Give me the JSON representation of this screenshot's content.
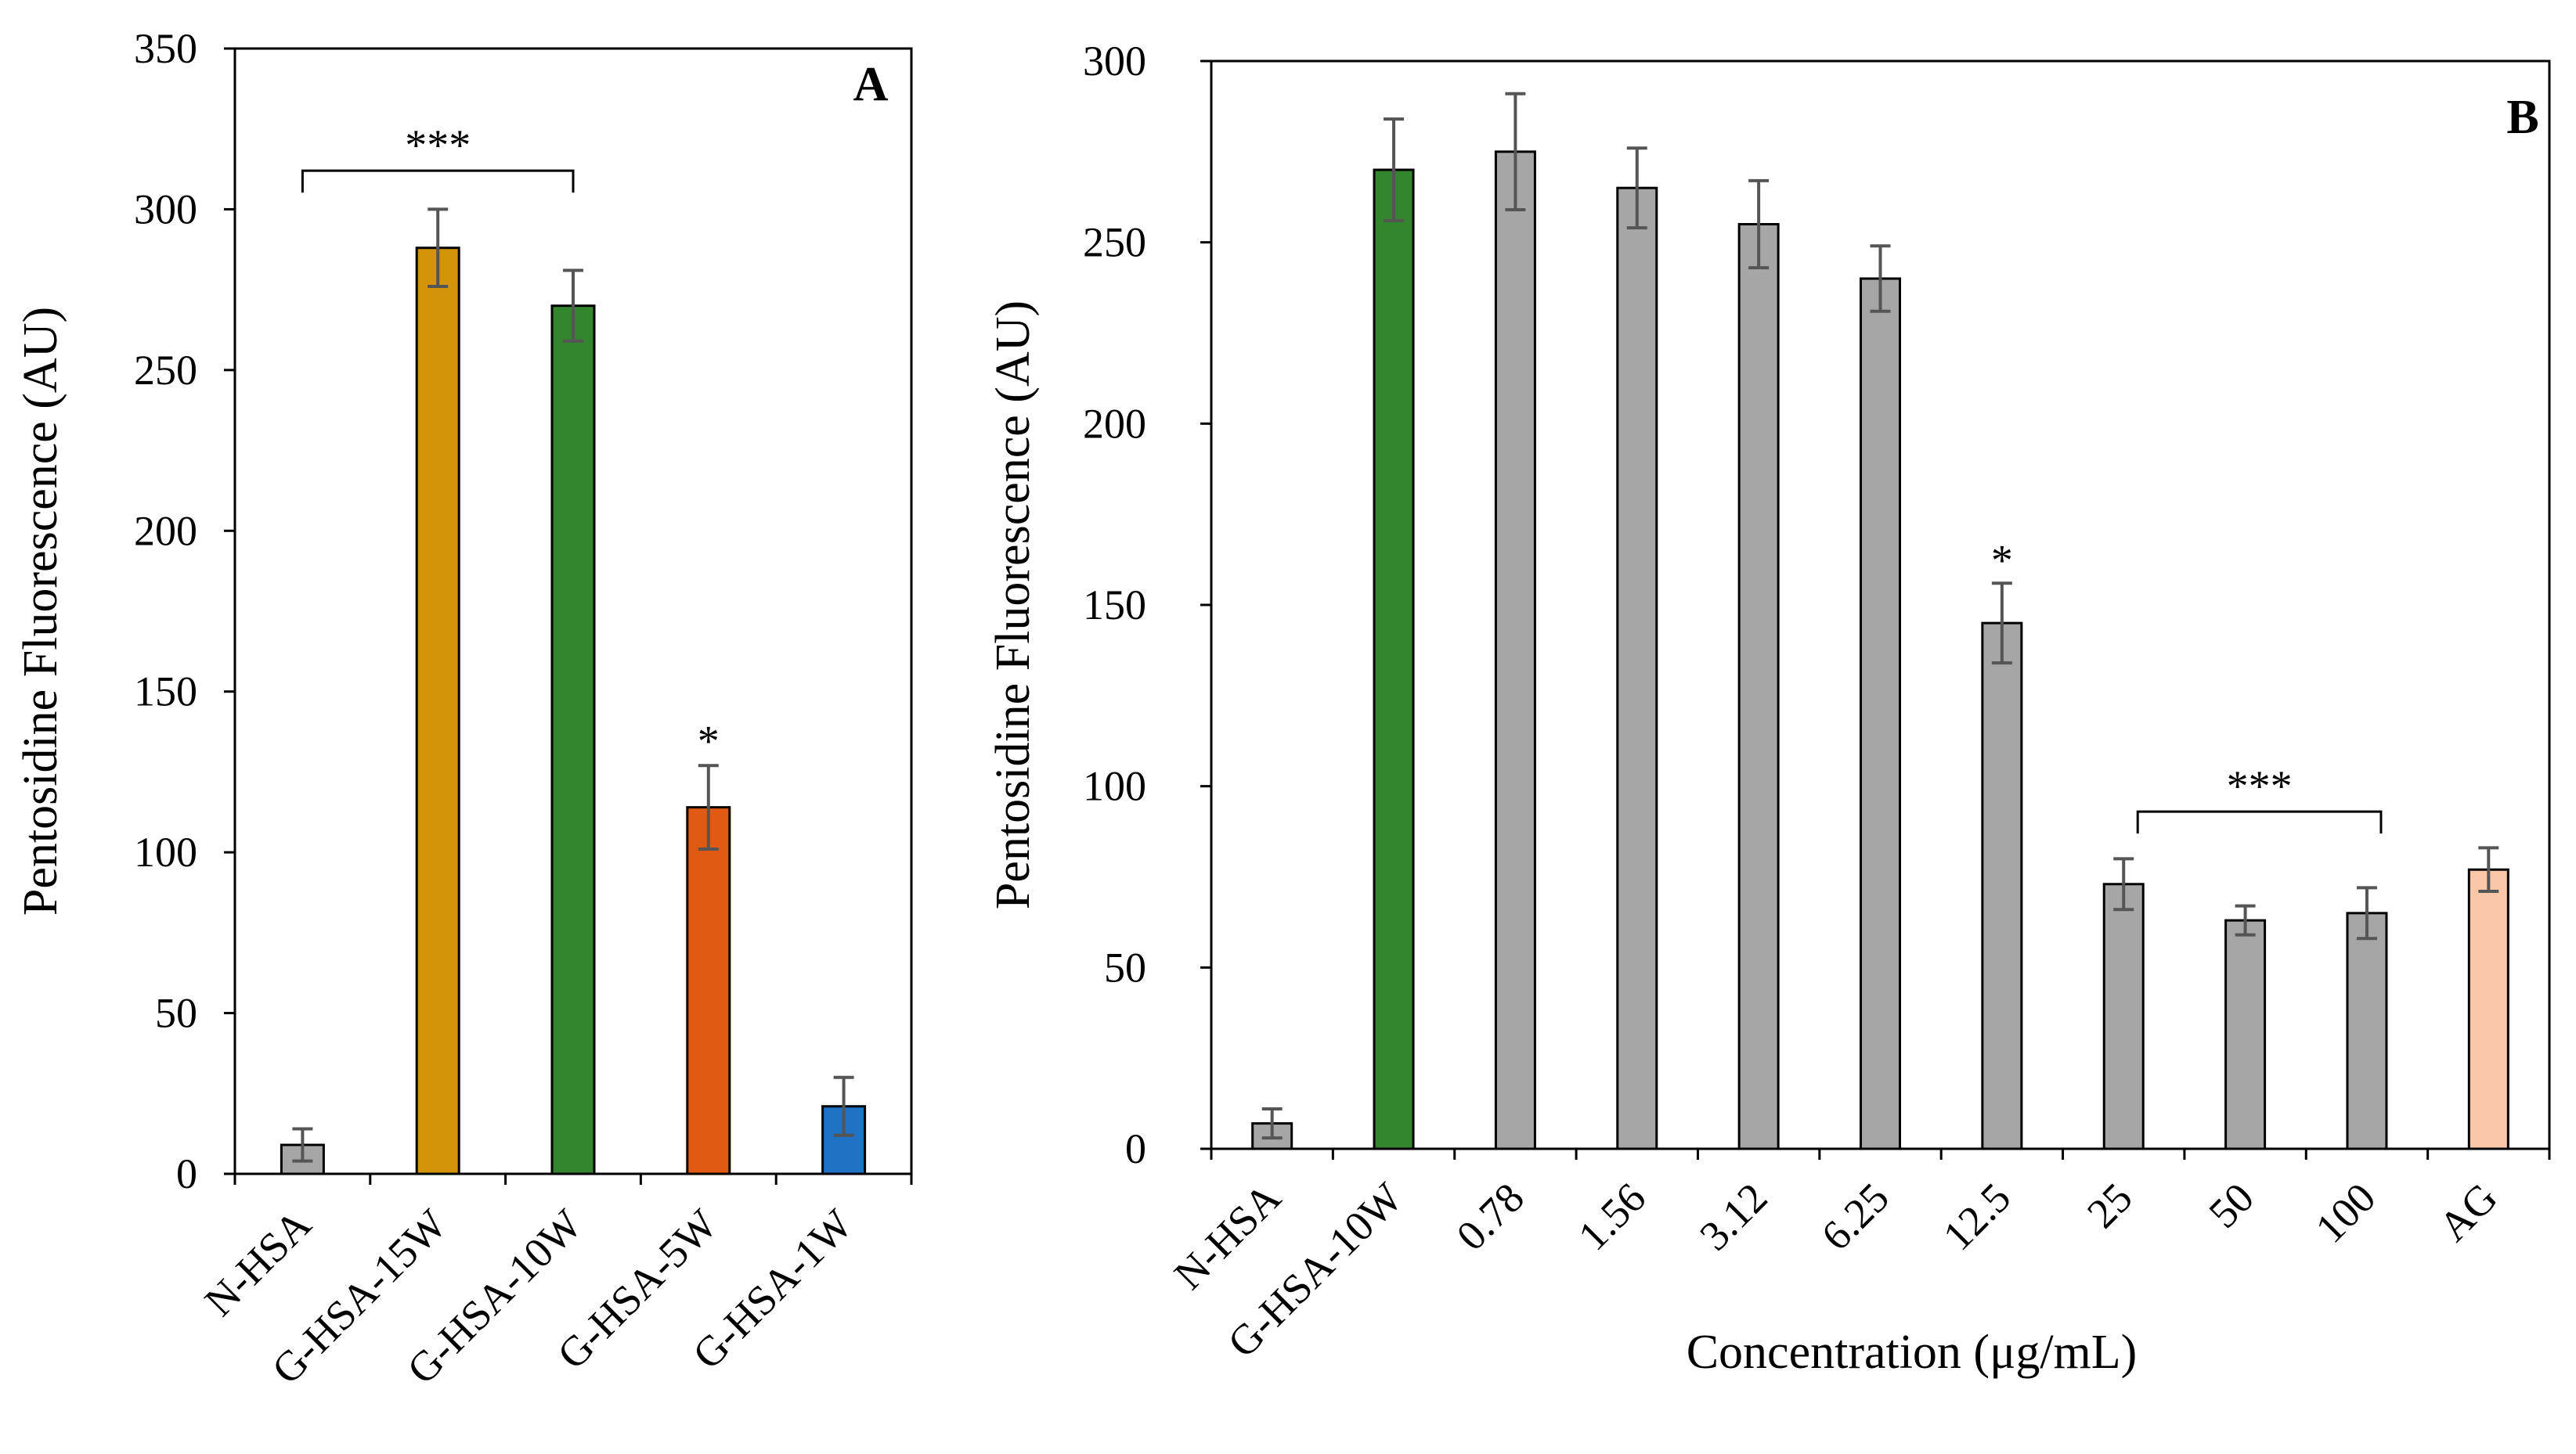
{
  "chart_data": [
    {
      "panel": "A",
      "type": "bar",
      "title": "",
      "panel_label": "A",
      "xlabel": "",
      "ylabel": "Pentosidine Fluorescence (AU)",
      "ylim": [
        0,
        350
      ],
      "yticks": [
        "0",
        "50",
        "100",
        "150",
        "200",
        "250",
        "300",
        "350"
      ],
      "grid": false,
      "legend": "none",
      "categories": [
        "N-HSA",
        "G-HSA-15W",
        "G-HSA-10W",
        "G-HSA-5W",
        "G-HSA-1W"
      ],
      "values": [
        9,
        288,
        270,
        114,
        21
      ],
      "errors": [
        5,
        12,
        11,
        13,
        9
      ],
      "colors": [
        "#a6a6a6",
        "#d4940a",
        "#33862d",
        "#e05a12",
        "#1f72c4"
      ],
      "annotations": [
        {
          "text": "***",
          "type": "bracket",
          "from_category": "N-HSA",
          "to_category": "G-HSA-10W",
          "value": 312
        },
        {
          "text": "*",
          "type": "marker",
          "category": "G-HSA-5W",
          "value": 132
        }
      ]
    },
    {
      "panel": "B",
      "type": "bar",
      "title": "",
      "panel_label": "B",
      "xlabel": "Concentration (μg/mL)",
      "ylabel": "Pentosidine Fluorescence (AU)",
      "ylim": [
        0,
        300
      ],
      "yticks": [
        "0",
        "50",
        "100",
        "150",
        "200",
        "250",
        "300"
      ],
      "grid": false,
      "legend": "none",
      "categories": [
        "N-HSA",
        "G-HSA-10W",
        "0.78",
        "1.56",
        "3.12",
        "6.25",
        "12.5",
        "25",
        "50",
        "100",
        "AG"
      ],
      "values": [
        7,
        270,
        275,
        265,
        255,
        240,
        145,
        73,
        63,
        65,
        77
      ],
      "errors": [
        4,
        14,
        16,
        11,
        12,
        9,
        11,
        7,
        4,
        7,
        6
      ],
      "colors": [
        "#a6a6a6",
        "#33862d",
        "#a6a6a6",
        "#a6a6a6",
        "#a6a6a6",
        "#a6a6a6",
        "#a6a6a6",
        "#a6a6a6",
        "#a6a6a6",
        "#a6a6a6",
        "#f9c6a8"
      ],
      "annotations": [
        {
          "text": "*",
          "type": "marker",
          "category": "12.5",
          "value": 160
        },
        {
          "text": "***",
          "type": "bracket",
          "from_category": "25",
          "to_category": "100",
          "value": 93
        }
      ]
    }
  ]
}
